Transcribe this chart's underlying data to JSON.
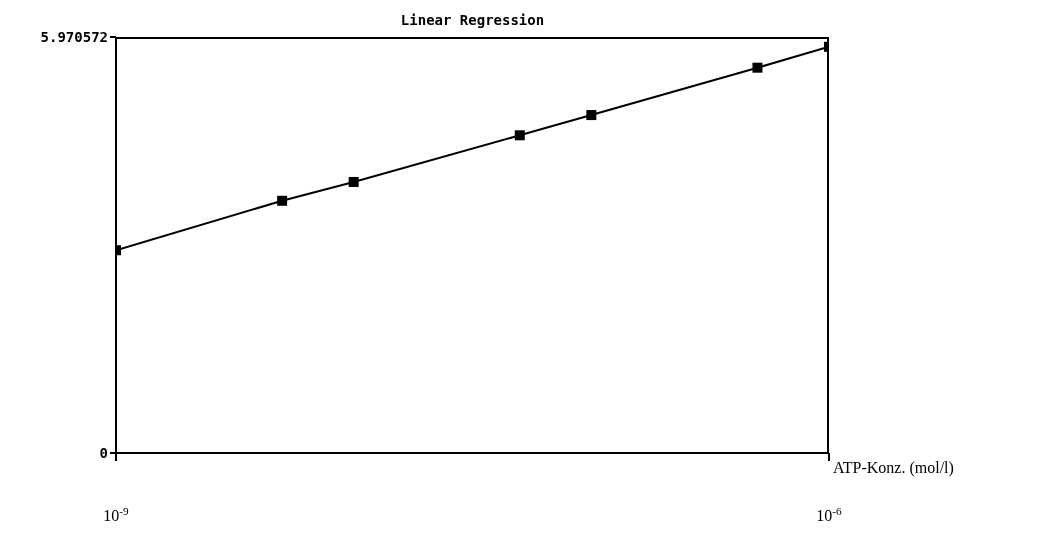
{
  "chart_data": {
    "type": "line",
    "title": "Linear Regression",
    "xlabel": "ATP-Konz. (mol/l)",
    "log": "x",
    "x": [
      1e-09,
      5e-09,
      1e-08,
      5e-08,
      1e-07,
      5e-07,
      1e-06
    ],
    "series": [
      {
        "color": "#000000",
        "values": [
          2.91,
          3.62,
          3.89,
          4.56,
          4.85,
          5.53,
          5.83
        ]
      }
    ],
    "xlim": [
      1e-09,
      1e-06
    ],
    "xticks": [
      {
        "value": 1e-09,
        "label": "10$^{-9}$"
      },
      {
        "value": 1e-06,
        "label": "10$^{-6}$"
      }
    ],
    "ylim": [
      0,
      5.970572
    ],
    "yticks": [
      0,
      5.970572
    ],
    "marker": "square",
    "line_style": "solid"
  }
}
